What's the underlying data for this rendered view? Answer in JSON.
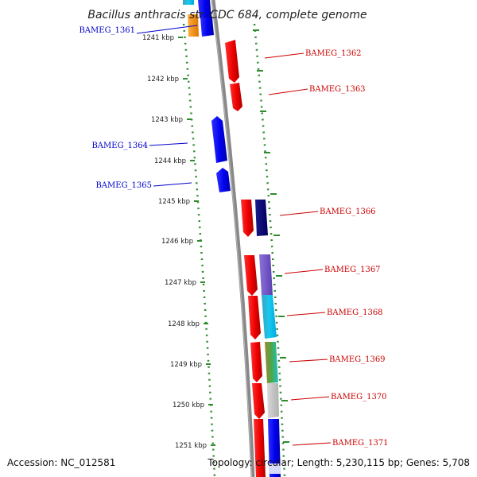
{
  "title": "Bacillus anthracis str. CDC 684, complete genome",
  "accession": "Accession: NC_012581",
  "topology": "Topology: circular; Length: 5,230,115 bp; Genes: 5,708",
  "colors": {
    "forward_label": "#0000cc",
    "reverse_label": "#cc0000",
    "tick": "#2e8b2e",
    "backbone": "#888888"
  },
  "kbp_ticks": [
    "1241 kbp",
    "1242 kbp",
    "1243 kbp",
    "1244 kbp",
    "1245 kbp",
    "1246 kbp",
    "1247 kbp",
    "1248 kbp",
    "1249 kbp",
    "1250 kbp",
    "1251 kbp"
  ],
  "genes": [
    {
      "label": "BAMEG_1361",
      "strand": "forward"
    },
    {
      "label": "BAMEG_1362",
      "strand": "reverse"
    },
    {
      "label": "BAMEG_1363",
      "strand": "reverse"
    },
    {
      "label": "BAMEG_1364",
      "strand": "forward"
    },
    {
      "label": "BAMEG_1365",
      "strand": "forward"
    },
    {
      "label": "BAMEG_1366",
      "strand": "reverse"
    },
    {
      "label": "BAMEG_1367",
      "strand": "reverse"
    },
    {
      "label": "BAMEG_1368",
      "strand": "reverse"
    },
    {
      "label": "BAMEG_1369",
      "strand": "reverse"
    },
    {
      "label": "BAMEG_1370",
      "strand": "reverse"
    },
    {
      "label": "BAMEG_1371",
      "strand": "reverse"
    }
  ]
}
